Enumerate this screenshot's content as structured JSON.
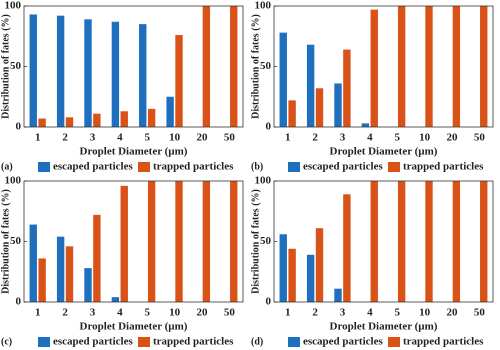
{
  "chart_data": [
    {
      "type": "bar",
      "panel_label": "(a)",
      "xlabel": "Droplet Diameter (µm)",
      "ylabel": "Distribution of fates (%)",
      "categories": [
        "1",
        "2",
        "3",
        "4",
        "5",
        "10",
        "20",
        "50"
      ],
      "series": [
        {
          "name": "escaped particles",
          "color": "#1f6fbf",
          "values": [
            93,
            92,
            89,
            87,
            85,
            25,
            0,
            0
          ]
        },
        {
          "name": "trapped particles",
          "color": "#d95319",
          "values": [
            7,
            8,
            11,
            13,
            15,
            76,
            100,
            100
          ]
        }
      ],
      "ylim": [
        0,
        100
      ],
      "yticks": [
        0,
        50,
        100
      ]
    },
    {
      "type": "bar",
      "panel_label": "(b)",
      "xlabel": "Droplet Diameter (µm)",
      "ylabel": "Distribution of fates (%)",
      "categories": [
        "1",
        "2",
        "3",
        "4",
        "5",
        "10",
        "20",
        "50"
      ],
      "series": [
        {
          "name": "escaped particles",
          "color": "#1f6fbf",
          "values": [
            78,
            68,
            36,
            3,
            0,
            0,
            0,
            0
          ]
        },
        {
          "name": "trapped particles",
          "color": "#d95319",
          "values": [
            22,
            32,
            64,
            97,
            100,
            100,
            100,
            100
          ]
        }
      ],
      "ylim": [
        0,
        100
      ],
      "yticks": [
        0,
        50,
        100
      ]
    },
    {
      "type": "bar",
      "panel_label": "(c)",
      "xlabel": "Droplet Diameter (µm)",
      "ylabel": "Distribution of fates (%)",
      "categories": [
        "1",
        "2",
        "3",
        "4",
        "5",
        "10",
        "20",
        "50"
      ],
      "series": [
        {
          "name": "escaped particles",
          "color": "#1f6fbf",
          "values": [
            64,
            54,
            28,
            4,
            0,
            0,
            0,
            0
          ]
        },
        {
          "name": "trapped particles",
          "color": "#d95319",
          "values": [
            36,
            46,
            72,
            96,
            100,
            100,
            100,
            100
          ]
        }
      ],
      "ylim": [
        0,
        100
      ],
      "yticks": [
        0,
        50,
        100
      ]
    },
    {
      "type": "bar",
      "panel_label": "(d)",
      "xlabel": "Droplet Diameter (µm)",
      "ylabel": "Distribution of fates (%)",
      "categories": [
        "1",
        "2",
        "3",
        "4",
        "5",
        "10",
        "20",
        "50"
      ],
      "series": [
        {
          "name": "escaped particles",
          "color": "#1f6fbf",
          "values": [
            56,
            39,
            11,
            0,
            0,
            0,
            0,
            0
          ]
        },
        {
          "name": "trapped particles",
          "color": "#d95319",
          "values": [
            44,
            61,
            89,
            100,
            100,
            100,
            100,
            100
          ]
        }
      ],
      "ylim": [
        0,
        100
      ],
      "yticks": [
        0,
        50,
        100
      ]
    }
  ]
}
